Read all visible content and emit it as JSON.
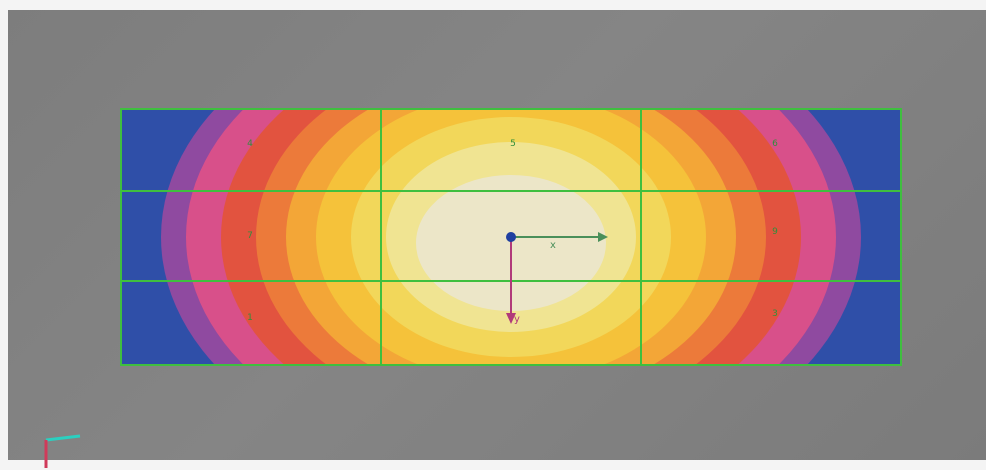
{
  "viewport": {
    "background": "#808080"
  },
  "contour": {
    "colors": [
      "#2f4fa8",
      "#8f4aa0",
      "#d8508a",
      "#e2533f",
      "#ec7a3a",
      "#f3a637",
      "#f5c23a",
      "#f2d75a",
      "#f0e492",
      "#ece6c8"
    ]
  },
  "mesh": {
    "line_color": "#3fbf3f",
    "element_labels": [
      "4",
      "5",
      "6",
      "7",
      "8",
      "9",
      "1",
      "2",
      "3"
    ]
  },
  "load_point": {
    "x_label": "x",
    "y_label": "y",
    "x_arrow_color": "#4a8f5a",
    "y_arrow_color": "#b13a7a",
    "node_color": "#1f3fa0"
  },
  "triad": {
    "x_color": "#2bd0c0",
    "y_color": "#d03a5a"
  }
}
